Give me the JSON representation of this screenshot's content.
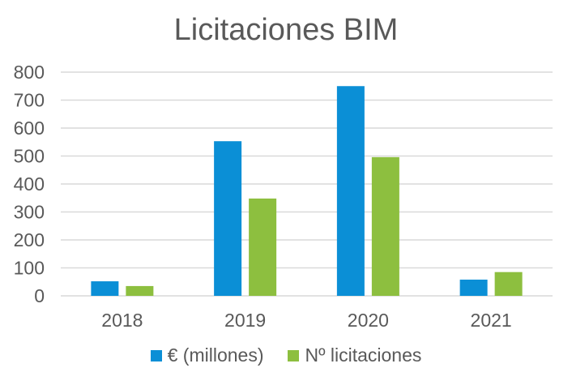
{
  "chart_data": {
    "type": "bar",
    "title": "Licitaciones BIM",
    "categories": [
      "2018",
      "2019",
      "2020",
      "2021"
    ],
    "series": [
      {
        "name": "€ (millones)",
        "color": "#0b8fd6",
        "values": [
          52,
          553,
          750,
          58
        ]
      },
      {
        "name": "Nº licitaciones",
        "color": "#8dbf3f",
        "values": [
          35,
          348,
          496,
          85
        ]
      }
    ],
    "ylim": [
      0,
      800
    ],
    "yticks": [
      0,
      100,
      200,
      300,
      400,
      500,
      600,
      700,
      800
    ],
    "grid": true,
    "legend": "bottom"
  }
}
